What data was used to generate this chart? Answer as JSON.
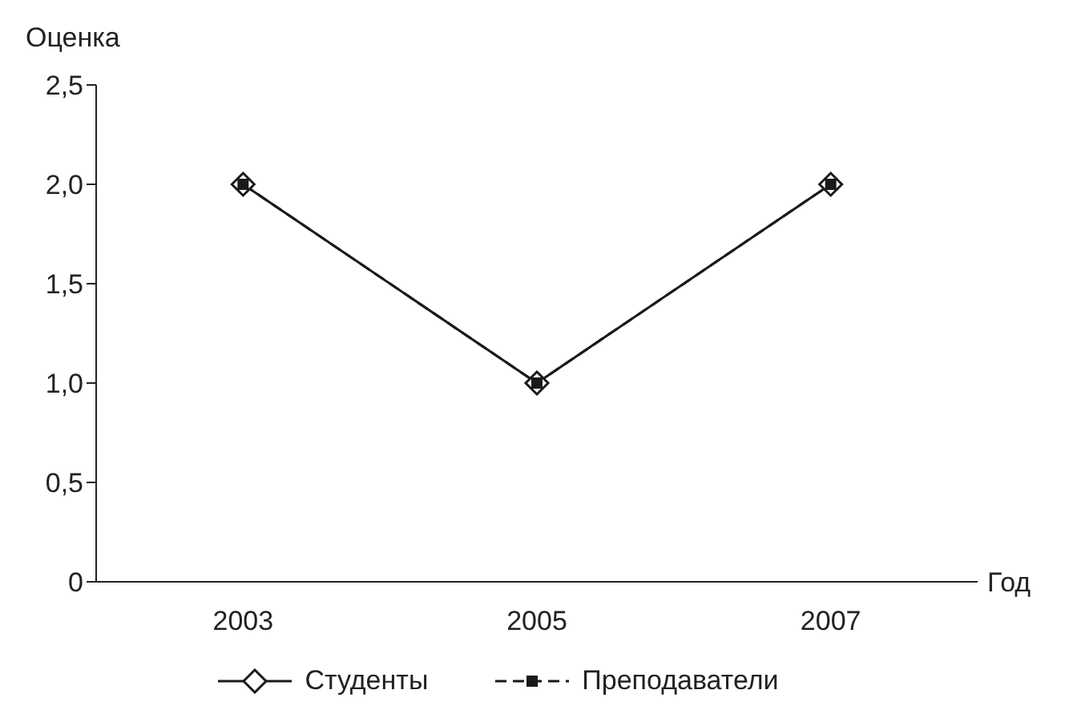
{
  "chart_data": {
    "type": "line",
    "xlabel": "Год",
    "ylabel": "Оценка",
    "categories": [
      "2003",
      "2005",
      "2007"
    ],
    "series": [
      {
        "name": "Студенты",
        "color": "#1a1a1a",
        "values": [
          2,
          1,
          2
        ],
        "marker": "diamond",
        "line_style": "solid"
      },
      {
        "name": "Преподаватели",
        "color": "#1a1a1a",
        "values": [
          2,
          1,
          2
        ],
        "marker": "square",
        "line_style": "dashed"
      }
    ],
    "ylim": [
      0,
      2.5
    ],
    "yticks": [
      0,
      {
        "value": 0.5,
        "label": "0,5"
      },
      {
        "value": 1,
        "label": "1,0"
      },
      {
        "value": 1.5,
        "label": "1,5"
      },
      {
        "value": 2,
        "label": "2,0"
      },
      {
        "value": 2.5,
        "label": "2,5"
      }
    ],
    "grid": false,
    "legend": "bottom"
  }
}
